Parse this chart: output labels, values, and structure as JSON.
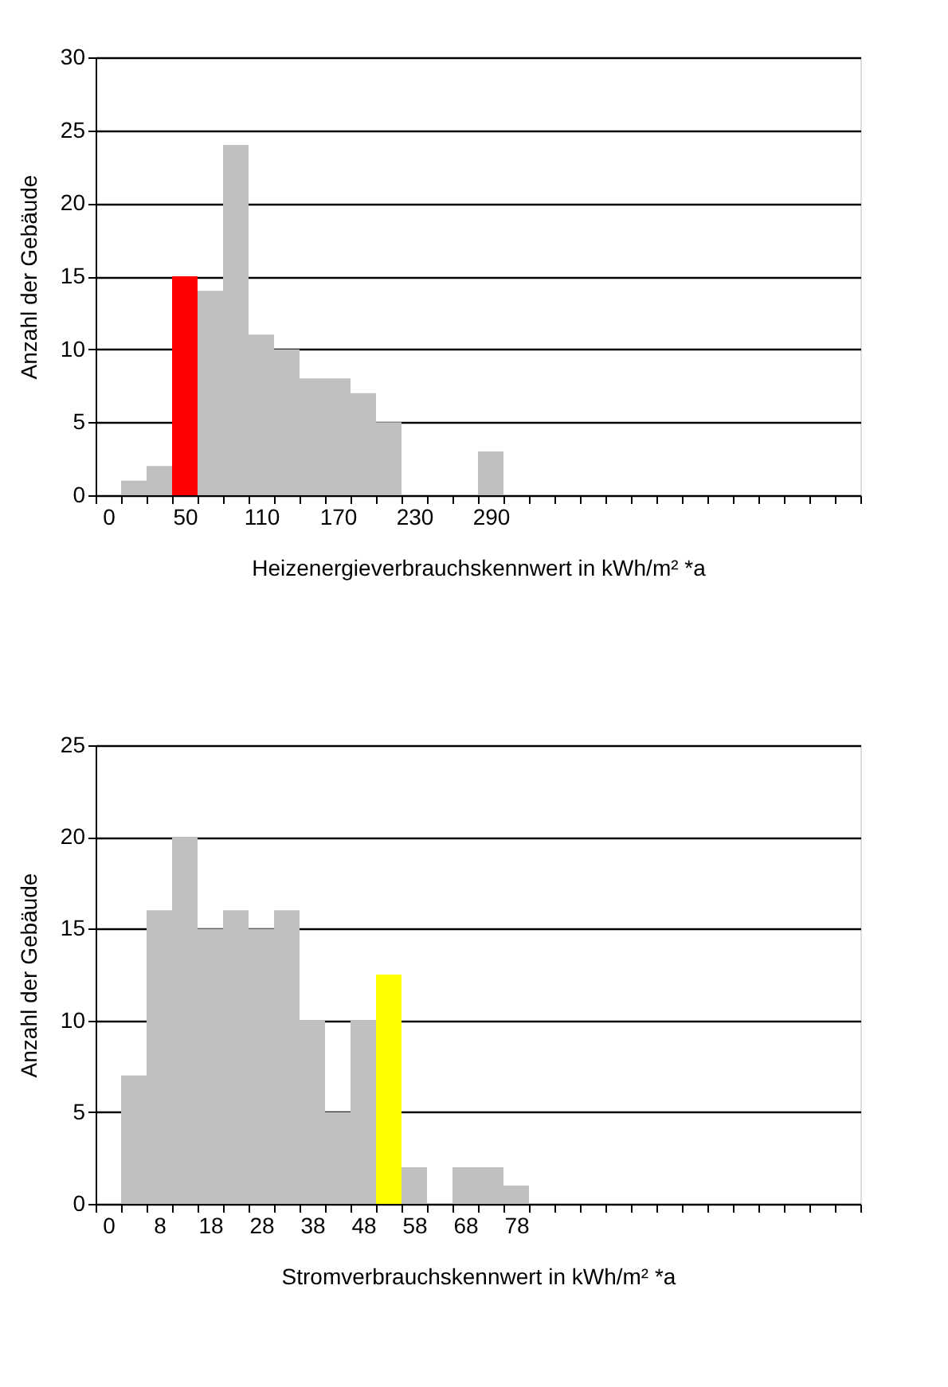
{
  "chart_data": [
    {
      "type": "bar",
      "xlabel": "Heizenergieverbrauchskennwert in kWh/m² *a",
      "ylabel": "Anzahl der Gebäude",
      "categories": [
        "0",
        null,
        null,
        "50",
        null,
        null,
        "110",
        null,
        null,
        "170",
        null,
        null,
        "230",
        null,
        null,
        "290",
        null,
        null,
        null,
        null,
        null,
        null,
        null,
        null,
        null,
        null,
        null,
        null,
        null,
        null
      ],
      "values": [
        0,
        1,
        2,
        15,
        14,
        24,
        11,
        10,
        8,
        8,
        7,
        5,
        0,
        0,
        0,
        3,
        0,
        0,
        0,
        0,
        0,
        0,
        0,
        0,
        0,
        0,
        0,
        0,
        0,
        0
      ],
      "colors": [
        "#c0c0c0",
        "#c0c0c0",
        "#c0c0c0",
        "#ff0000",
        "#c0c0c0",
        "#c0c0c0",
        "#c0c0c0",
        "#c0c0c0",
        "#c0c0c0",
        "#c0c0c0",
        "#c0c0c0",
        "#c0c0c0",
        "#c0c0c0",
        "#c0c0c0",
        "#c0c0c0",
        "#c0c0c0",
        "#c0c0c0",
        "#c0c0c0",
        "#c0c0c0",
        "#c0c0c0",
        "#c0c0c0",
        "#c0c0c0",
        "#c0c0c0",
        "#c0c0c0",
        "#c0c0c0",
        "#c0c0c0",
        "#c0c0c0",
        "#c0c0c0",
        "#c0c0c0",
        "#c0c0c0"
      ],
      "ylim": [
        0,
        30
      ],
      "yticks": [
        0,
        5,
        10,
        15,
        20,
        25,
        30
      ],
      "grid": "y"
    },
    {
      "type": "bar",
      "xlabel": "Stromverbrauchskennwert  in kWh/m² *a",
      "ylabel": "Anzahl der Gebäude",
      "categories": [
        "0",
        null,
        "8",
        null,
        "18",
        null,
        "28",
        null,
        "38",
        null,
        "48",
        null,
        "58",
        null,
        "68",
        null,
        "78",
        null,
        null,
        null,
        null,
        null,
        null,
        null,
        null,
        null,
        null,
        null,
        null,
        null
      ],
      "values": [
        0,
        7,
        16,
        20,
        15,
        16,
        15,
        16,
        10,
        5,
        10,
        12.5,
        2,
        0,
        2,
        2,
        1,
        0,
        0,
        0,
        0,
        0,
        0,
        0,
        0,
        0,
        0,
        0,
        0,
        0
      ],
      "colors": [
        "#c0c0c0",
        "#c0c0c0",
        "#c0c0c0",
        "#c0c0c0",
        "#c0c0c0",
        "#c0c0c0",
        "#c0c0c0",
        "#c0c0c0",
        "#c0c0c0",
        "#c0c0c0",
        "#c0c0c0",
        "#ffff00",
        "#c0c0c0",
        "#c0c0c0",
        "#c0c0c0",
        "#c0c0c0",
        "#c0c0c0",
        "#c0c0c0",
        "#c0c0c0",
        "#c0c0c0",
        "#c0c0c0",
        "#c0c0c0",
        "#c0c0c0",
        "#c0c0c0",
        "#c0c0c0",
        "#c0c0c0",
        "#c0c0c0",
        "#c0c0c0",
        "#c0c0c0",
        "#c0c0c0"
      ],
      "ylim": [
        0,
        25
      ],
      "yticks": [
        0,
        5,
        10,
        15,
        20,
        25
      ],
      "grid": "y"
    }
  ]
}
